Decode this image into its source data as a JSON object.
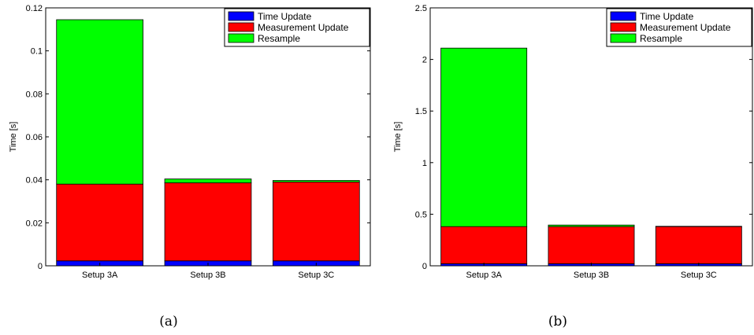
{
  "chart_data": [
    {
      "type": "bar",
      "stacked": true,
      "caption": "(a)",
      "ylabel": "Time [s]",
      "ylim": [
        0,
        0.12
      ],
      "yticks": [
        "0",
        "0.02",
        "0.04",
        "0.06",
        "0.08",
        "0.1",
        "0.12"
      ],
      "categories": [
        "Setup 3A",
        "Setup 3B",
        "Setup 3C"
      ],
      "legend_position": "top-right",
      "grid": false,
      "series": [
        {
          "name": "Time Update",
          "color": "#0000ff",
          "values": [
            0.0023,
            0.0023,
            0.0023
          ]
        },
        {
          "name": "Measurement Update",
          "color": "#ff0000",
          "values": [
            0.0357,
            0.0363,
            0.0367
          ]
        },
        {
          "name": "Resample",
          "color": "#00ff00",
          "values": [
            0.0765,
            0.0018,
            0.0007
          ]
        }
      ]
    },
    {
      "type": "bar",
      "stacked": true,
      "caption": "(b)",
      "ylabel": "Time [s]",
      "ylim": [
        0,
        2.5
      ],
      "yticks": [
        "0",
        "0.5",
        "1",
        "1.5",
        "2",
        "2.5"
      ],
      "categories": [
        "Setup 3A",
        "Setup 3B",
        "Setup 3C"
      ],
      "legend_position": "top-right",
      "grid": false,
      "series": [
        {
          "name": "Time Update",
          "color": "#0000ff",
          "values": [
            0.02,
            0.02,
            0.02
          ]
        },
        {
          "name": "Measurement Update",
          "color": "#ff0000",
          "values": [
            0.36,
            0.36,
            0.36
          ]
        },
        {
          "name": "Resample",
          "color": "#00ff00",
          "values": [
            1.73,
            0.015,
            0.003
          ]
        }
      ]
    }
  ]
}
